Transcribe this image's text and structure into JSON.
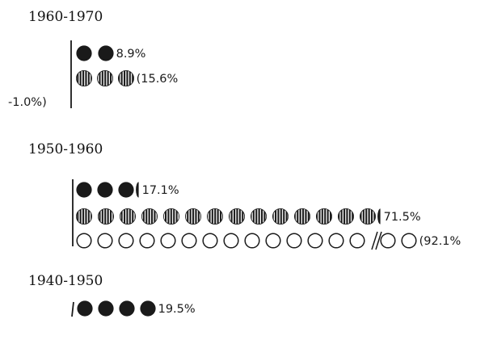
{
  "chart_data": {
    "type": "pictogram",
    "unit_note": "",
    "colors": {
      "ink": "#1a1a1a",
      "background": "#ffffff"
    },
    "groups": [
      {
        "period": "1960-1970",
        "rows": [
          {
            "style": "solid",
            "value": 8.9,
            "label": "8.9%",
            "icons": 2,
            "partial": false,
            "broken": false
          },
          {
            "style": "striped",
            "value": 15.6,
            "label": "(15.6%",
            "icons": 3,
            "partial": false,
            "broken": false
          }
        ],
        "negative": {
          "value": -1.0,
          "label": "-1.0%)"
        }
      },
      {
        "period": "1950-1960",
        "rows": [
          {
            "style": "solid",
            "value": 17.1,
            "label": "17.1%",
            "icons": 3,
            "partial": true,
            "broken": false
          },
          {
            "style": "striped",
            "value": 71.5,
            "label": "71.5%",
            "icons": 14,
            "partial": true,
            "broken": false
          },
          {
            "style": "outline",
            "value": 92.1,
            "label": "(92.1%",
            "icons": 16,
            "partial": false,
            "broken": true,
            "break_after": 14
          }
        ]
      },
      {
        "period": "1940-1950",
        "rows": [
          {
            "style": "solid",
            "value": 19.5,
            "label": "19.5%",
            "icons": 4,
            "partial": false,
            "broken": false
          }
        ]
      }
    ]
  }
}
